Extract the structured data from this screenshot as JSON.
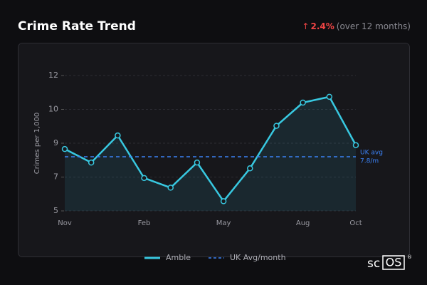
{
  "header": {
    "title": "Crime Rate Trend",
    "arrow": "↑",
    "change": "2.4%",
    "period": "(over 12 months)"
  },
  "chart_data": {
    "type": "line",
    "y_label": "Crimes per 1,000",
    "categories": [
      "Nov",
      null,
      null,
      "Feb",
      null,
      null,
      "May",
      null,
      null,
      "Aug",
      null,
      "Oct"
    ],
    "series": [
      {
        "name": "Amble",
        "color": "#38c8e0",
        "values": [
          8.2,
          7.5,
          8.9,
          6.7,
          6.2,
          7.5,
          5.5,
          7.2,
          9.4,
          10.6,
          10.9,
          8.4
        ]
      }
    ],
    "reference": {
      "name": "UK Avg/month",
      "value": 7.8,
      "color": "#3b82f6",
      "label_lines": [
        "UK avg",
        "7.8/m"
      ]
    },
    "ylim": [
      5,
      12
    ],
    "yticks": [
      5,
      {
        "value": 6.75,
        "label": "7"
      },
      {
        "value": 8.5,
        "label": "9"
      },
      {
        "value": 10.25,
        "label": "10"
      },
      12
    ],
    "grid": true
  },
  "logo": {
    "prefix": "sc",
    "boxed": "OS",
    "mark": "®"
  }
}
